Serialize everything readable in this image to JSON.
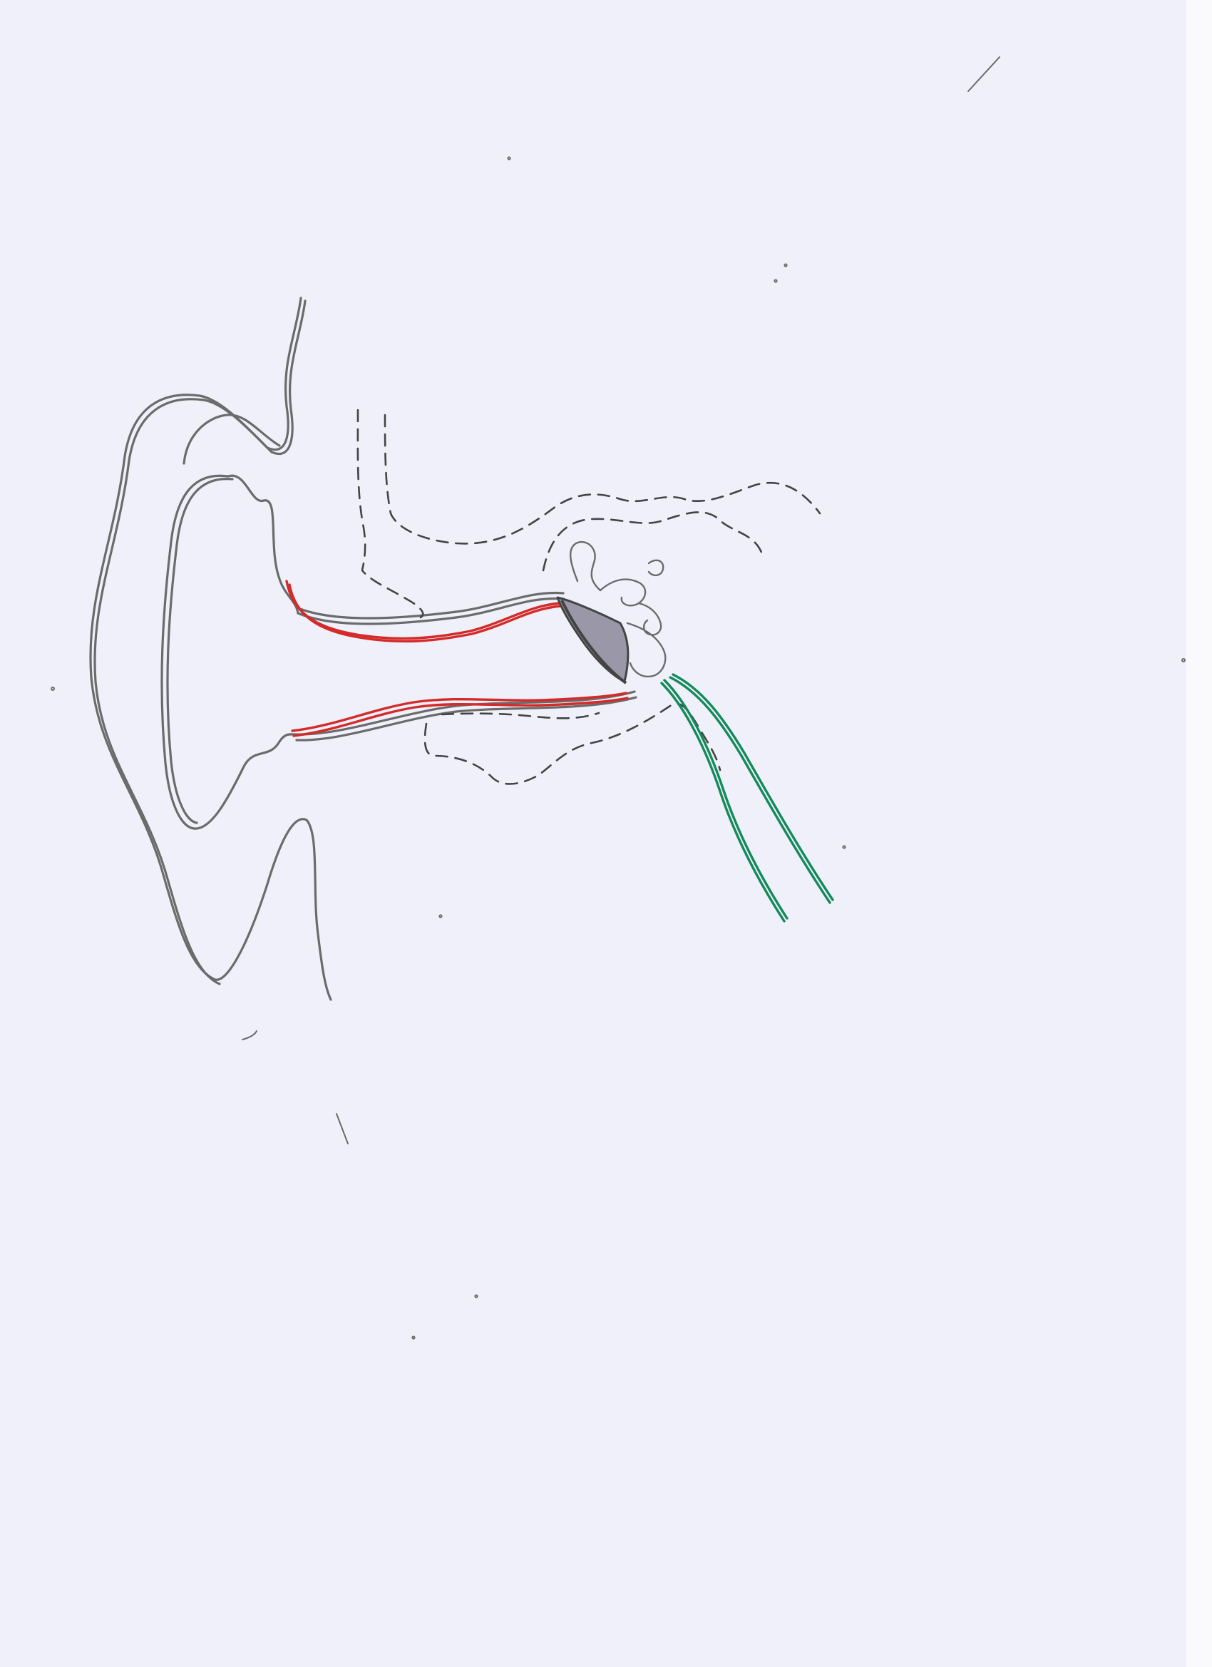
{
  "drawing": {
    "subject": "ear-anatomy-sketch",
    "colors": {
      "paper": "#eff0f9",
      "pencil": "#6b6b6b",
      "dashed_outline": "#444444",
      "ear_canal_lining": "#d42a2a",
      "nerve": "#138a5a",
      "eardrum_shading": "#9a98a8"
    },
    "parts": [
      "outer-ear-outline",
      "ear-canal",
      "eardrum",
      "ossicles",
      "temporal-bone-outline",
      "auditory-nerve"
    ]
  }
}
